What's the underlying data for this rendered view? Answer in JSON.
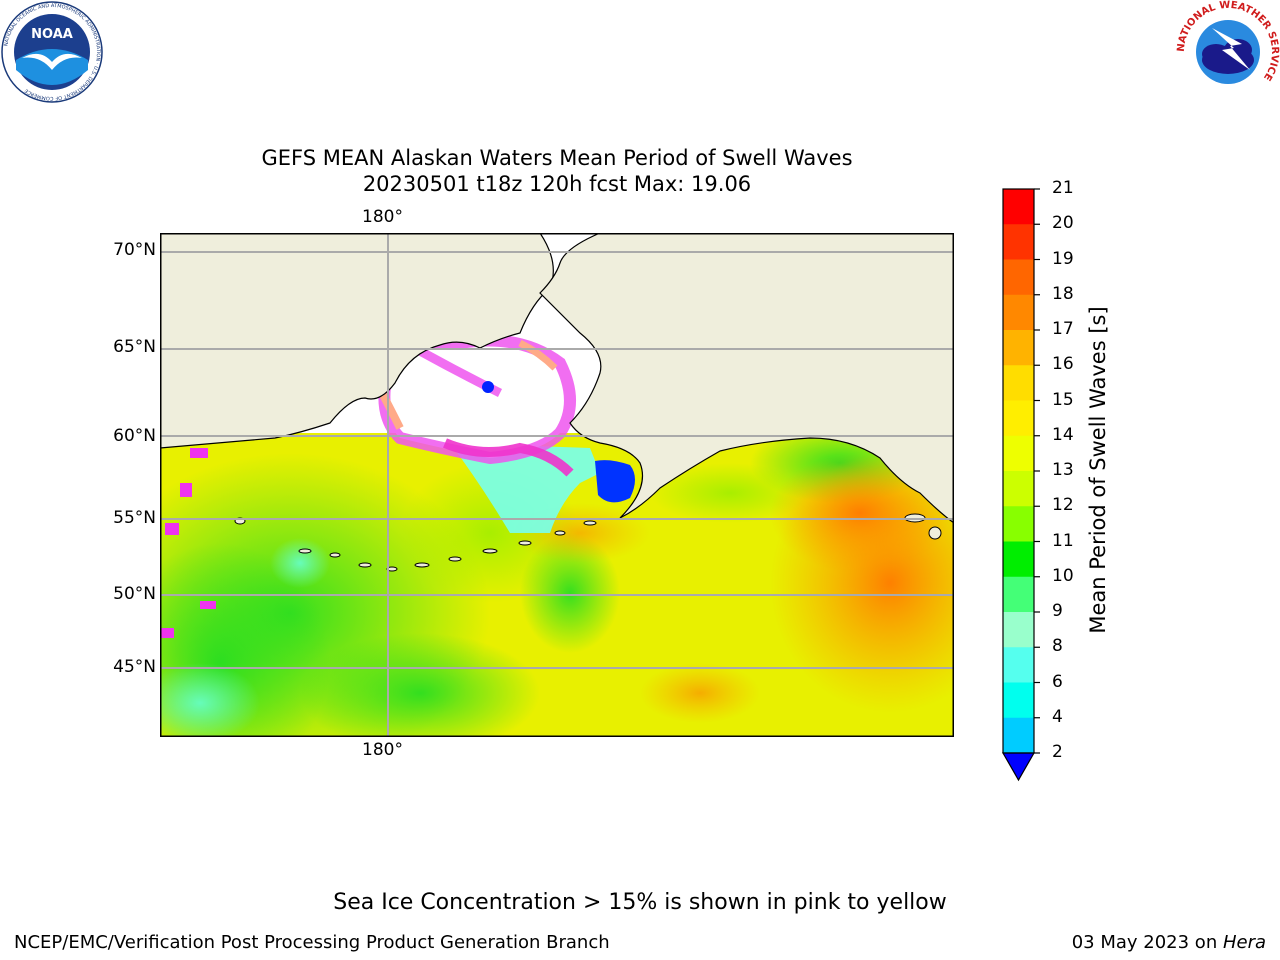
{
  "title_line1": "GEFS MEAN Alaskan Waters Mean Period of Swell Waves",
  "title_line2": "20230501 t18z 120h fcst   Max: 19.06",
  "map": {
    "lon_label_top": "180°",
    "lon_label_bottom": "180°",
    "lat_labels": [
      "70°N",
      "65°N",
      "60°N",
      "55°N",
      "50°N",
      "45°N"
    ]
  },
  "colorbar": {
    "label": "Mean Period of Swell Waves [s]",
    "ticks": [
      "21",
      "20",
      "19",
      "18",
      "17",
      "16",
      "15",
      "14",
      "13",
      "12",
      "11",
      "10",
      "9",
      "8",
      "6",
      "4",
      "2"
    ],
    "colors": [
      "#ff0000",
      "#ff3300",
      "#ff6600",
      "#ff8800",
      "#ffb300",
      "#ffdd00",
      "#ffee00",
      "#eeff00",
      "#ccff00",
      "#88ff00",
      "#00ee00",
      "#44ff77",
      "#99ffcc",
      "#55ffee",
      "#00ffee",
      "#00ccff",
      "#0066ff"
    ],
    "extend_color": "#0000ff"
  },
  "logos": {
    "noaa_text": "NOAA",
    "noaa_ring_text": "NATIONAL OCEANIC AND ATMOSPHERIC ADMINISTRATION · U.S. DEPARTMENT OF COMMERCE",
    "nws_ring_text": "NATIONAL WEATHER SERVICE"
  },
  "caption": "Sea Ice Concentration > 15% is shown in pink to yellow",
  "footer_left": "NCEP/EMC/Verification Post Processing Product Generation Branch",
  "footer_date": "03 May 2023 on ",
  "footer_host": "Hera",
  "colors": {
    "land": "#efeedc",
    "ocean_base": "#eeee22",
    "grid": "#aaaaaa"
  }
}
